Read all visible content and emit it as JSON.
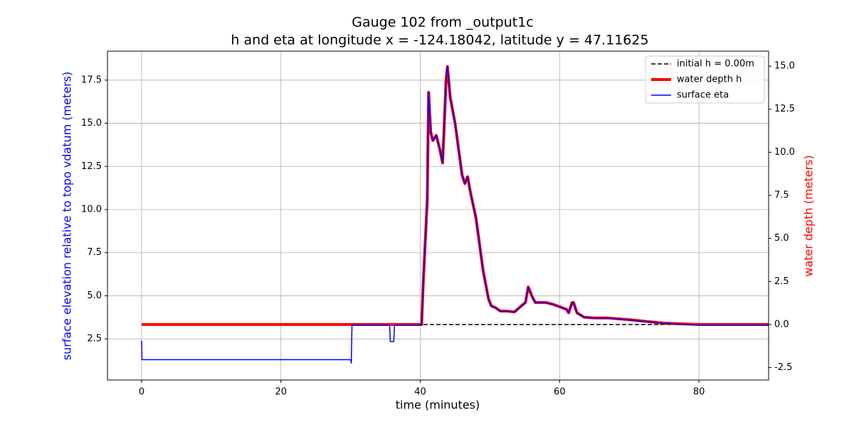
{
  "chart_data": {
    "type": "line",
    "title": "Gauge 102 from _output1c",
    "subtitle": "h and eta at longitude x = -124.18042, latitude y = 47.11625",
    "xlabel": "time (minutes)",
    "ylabel": "surface elevation relative to topo vdatum (meters)",
    "ylabel_color": "#0000ff",
    "y2label": "water depth (meters)",
    "y2label_color": "#ff0000",
    "xlim": [
      -4.9,
      90
    ],
    "xticks": [
      0,
      20,
      40,
      60,
      80
    ],
    "ylim": [
      0.12,
      19.18
    ],
    "yticks": [
      2.5,
      {
        "value": 5,
        "label": "5.0"
      },
      7.5,
      {
        "value": 10,
        "label": "10.0"
      },
      12.5,
      {
        "value": 15,
        "label": "15.0"
      },
      17.5
    ],
    "y2lim": [
      -3.22,
      15.87
    ],
    "y2ticks": [
      -2.5,
      {
        "value": 0,
        "label": "0.0"
      },
      2.5,
      {
        "value": 5,
        "label": "5.0"
      },
      7.5,
      {
        "value": 10,
        "label": "10.0"
      },
      12.5,
      {
        "value": 15,
        "label": "15.0"
      }
    ],
    "grid": true,
    "legend": "upper right",
    "series": [
      {
        "name": "initial h = 0.00m",
        "color": "#000000",
        "style": "dashed",
        "linewidth": 1.5,
        "axis": "y2",
        "x": [
          0,
          90
        ],
        "values": [
          0,
          0
        ]
      },
      {
        "name": "water depth h",
        "color": "#ff0000",
        "style": "solid",
        "linewidth": 4,
        "axis": "y2",
        "x": [
          0,
          40.2,
          40.4,
          41,
          41.2,
          41.5,
          41.8,
          42.3,
          42.8,
          43.2,
          43.4,
          43.7,
          43.9,
          44.3,
          45,
          46,
          46.4,
          46.8,
          47.2,
          48,
          49,
          49.8,
          50.2,
          50.8,
          51.5,
          52.5,
          53.5,
          54.5,
          55.1,
          55.5,
          56,
          56.5,
          57,
          58,
          59,
          61,
          61.3,
          61.8,
          62,
          62.5,
          63.5,
          65,
          67,
          70,
          75,
          80,
          90
        ],
        "values": [
          0,
          0,
          2.18,
          7.18,
          13.48,
          11.18,
          10.68,
          10.98,
          10.18,
          9.38,
          11.18,
          14.18,
          14.98,
          13.18,
          11.68,
          8.68,
          8.18,
          8.58,
          7.68,
          6.18,
          3.18,
          1.48,
          1.08,
          0.98,
          0.78,
          0.78,
          0.73,
          1.08,
          1.28,
          2.18,
          1.68,
          1.28,
          1.28,
          1.28,
          1.18,
          0.88,
          0.68,
          1.28,
          1.28,
          0.68,
          0.43,
          0.38,
          0.38,
          0.28,
          0.08,
          0,
          0
        ]
      },
      {
        "name": "surface eta",
        "color": "#0000ff",
        "style": "solid",
        "linewidth": 1.5,
        "axis": "y",
        "x": [
          0,
          0.05,
          30,
          30.1,
          30.2,
          35.6,
          35.7,
          36.2,
          36.3,
          40.2,
          40.4,
          41,
          41.2,
          41.5,
          41.8,
          42.3,
          42.8,
          43.2,
          43.4,
          43.7,
          43.9,
          44.3,
          45,
          46,
          46.4,
          46.8,
          47.2,
          48,
          49,
          49.8,
          50.2,
          50.8,
          51.5,
          52.5,
          53.5,
          54.5,
          55.1,
          55.5,
          56,
          56.5,
          57,
          58,
          59,
          61,
          61.3,
          61.8,
          62,
          62.5,
          63.5,
          65,
          67,
          70,
          75,
          80,
          90
        ],
        "values": [
          2.4,
          1.3,
          1.3,
          1.1,
          3.3,
          3.3,
          2.35,
          2.35,
          3.3,
          3.3,
          5.5,
          10.5,
          16.8,
          14.5,
          14.0,
          14.3,
          13.5,
          12.7,
          14.5,
          17.5,
          18.3,
          16.5,
          15.0,
          12.0,
          11.5,
          11.9,
          11.0,
          9.5,
          6.5,
          4.8,
          4.4,
          4.3,
          4.1,
          4.1,
          4.05,
          4.4,
          4.6,
          5.5,
          5.0,
          4.6,
          4.6,
          4.6,
          4.5,
          4.2,
          4.0,
          4.6,
          4.6,
          4.0,
          3.75,
          3.7,
          3.7,
          3.6,
          3.4,
          3.3,
          3.3
        ]
      }
    ]
  }
}
